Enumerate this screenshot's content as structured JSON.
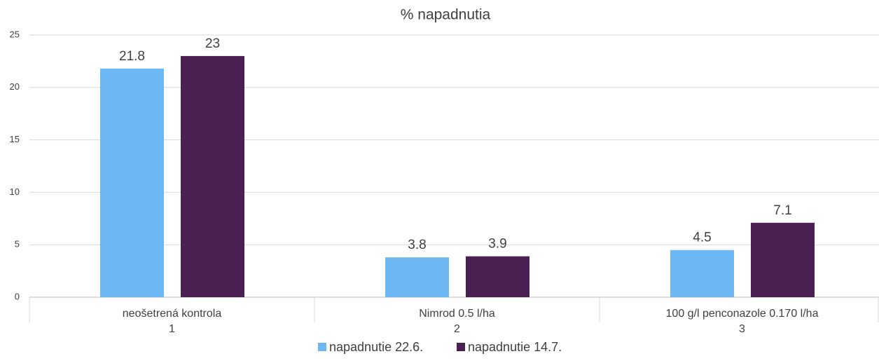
{
  "chart_data": {
    "type": "bar",
    "title": "% napadnutia",
    "categories": [
      "neošetrená kontrola",
      "Nimrod 0.5 l/ha",
      "100 g/l penconazole 0.170 l/ha"
    ],
    "category_groups": [
      "1",
      "2",
      "3"
    ],
    "series": [
      {
        "name": "napadnutie 22.6.",
        "color": "#6db8f2",
        "values": [
          21.8,
          3.8,
          4.5
        ]
      },
      {
        "name": "napadnutie 14.7.",
        "color": "#4a1f52",
        "values": [
          23,
          3.9,
          7.1
        ]
      }
    ],
    "ylim": [
      0,
      25
    ],
    "yticks": [
      0,
      5,
      10,
      15,
      20,
      25
    ],
    "grid": true,
    "legend": "bottom"
  }
}
